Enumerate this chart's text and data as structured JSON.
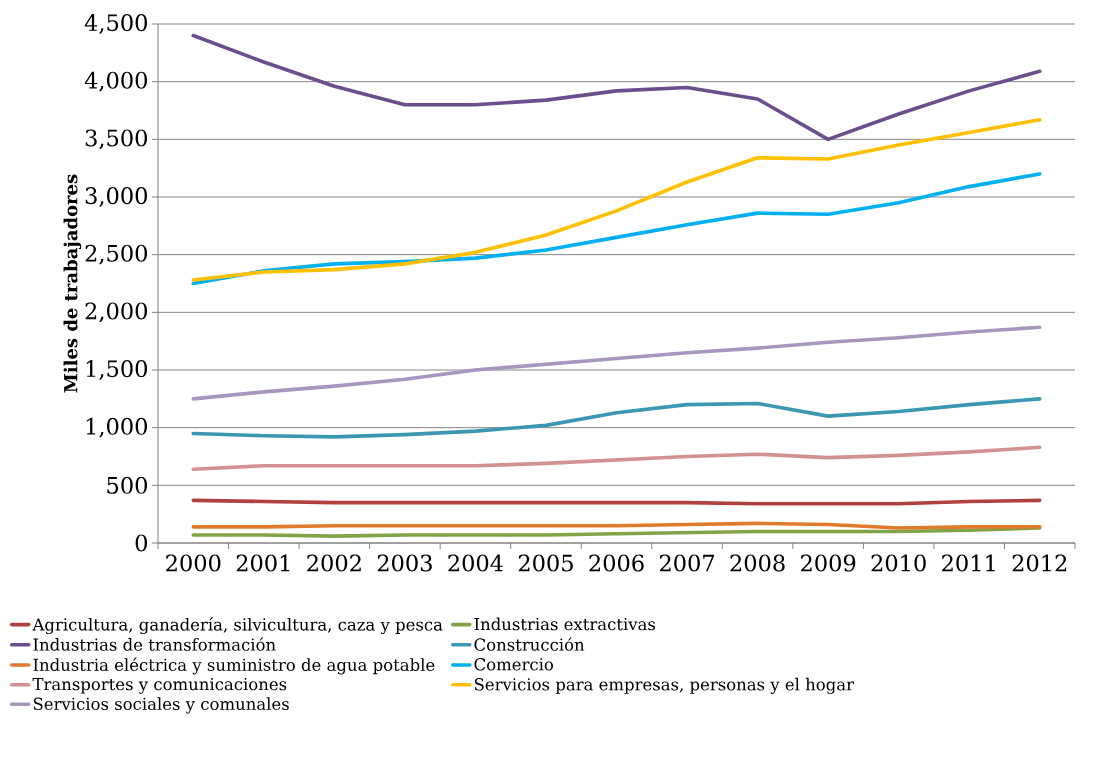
{
  "chart_data": {
    "type": "line",
    "ylabel": "Miles de trabajadores",
    "categories": [
      "2000",
      "2001",
      "2002",
      "2003",
      "2004",
      "2005",
      "2006",
      "2007",
      "2008",
      "2009",
      "2010",
      "2011",
      "2012"
    ],
    "ylim": [
      0,
      4500
    ],
    "yticks": [
      0,
      500,
      {
        "value": 1000,
        "label": "1,000"
      },
      {
        "value": 1500,
        "label": "1,500"
      },
      {
        "value": 2000,
        "label": "2,000"
      },
      {
        "value": 2500,
        "label": "2,500"
      },
      {
        "value": 3000,
        "label": "3,000"
      },
      {
        "value": 3500,
        "label": "3,500"
      },
      {
        "value": 4000,
        "label": "4,000"
      },
      {
        "value": 4500,
        "label": "4,500"
      }
    ],
    "grid": "y",
    "legend": "bottom",
    "marker": "none",
    "line_style": "solid",
    "series": [
      {
        "name": "Agricultura, ganadería, silvicultura, caza y pesca",
        "color": "#b0413e",
        "values": [
          370,
          360,
          350,
          350,
          350,
          350,
          350,
          350,
          340,
          340,
          340,
          360,
          370
        ]
      },
      {
        "name": "Industrias extractivas",
        "color": "#82a446",
        "values": [
          70,
          70,
          60,
          70,
          70,
          70,
          80,
          90,
          100,
          100,
          100,
          110,
          130
        ]
      },
      {
        "name": "Industrias de transformación",
        "color": "#6b4f8c",
        "values": [
          4400,
          4170,
          3960,
          3800,
          3800,
          3840,
          3920,
          3950,
          3850,
          3500,
          3720,
          3920,
          4090
        ]
      },
      {
        "name": "Construcción",
        "color": "#3c97b0",
        "values": [
          950,
          930,
          920,
          940,
          970,
          1020,
          1130,
          1200,
          1210,
          1100,
          1140,
          1200,
          1250
        ]
      },
      {
        "name": "Industria eléctrica y suministro de agua potable",
        "color": "#e07b2d",
        "values": [
          140,
          140,
          150,
          150,
          150,
          150,
          150,
          160,
          170,
          160,
          130,
          140,
          140
        ]
      },
      {
        "name": "Comercio",
        "color": "#00b0f0",
        "values": [
          2250,
          2360,
          2420,
          2440,
          2470,
          2540,
          2650,
          2760,
          2860,
          2850,
          2950,
          3090,
          3200
        ]
      },
      {
        "name": "Transportes y comunicaciones",
        "color": "#d49191",
        "values": [
          640,
          670,
          670,
          670,
          670,
          690,
          720,
          750,
          770,
          740,
          760,
          790,
          830
        ]
      },
      {
        "name": "Servicios para empresas, personas y el hogar",
        "color": "#ffc000",
        "values": [
          2280,
          2350,
          2370,
          2420,
          2520,
          2670,
          2880,
          3130,
          3340,
          3330,
          3450,
          3560,
          3670
        ]
      },
      {
        "name": "Servicios sociales y comunales",
        "color": "#a597bd",
        "values": [
          1250,
          1310,
          1360,
          1420,
          1500,
          1550,
          1600,
          1650,
          1690,
          1740,
          1780,
          1830,
          1870
        ]
      }
    ]
  }
}
